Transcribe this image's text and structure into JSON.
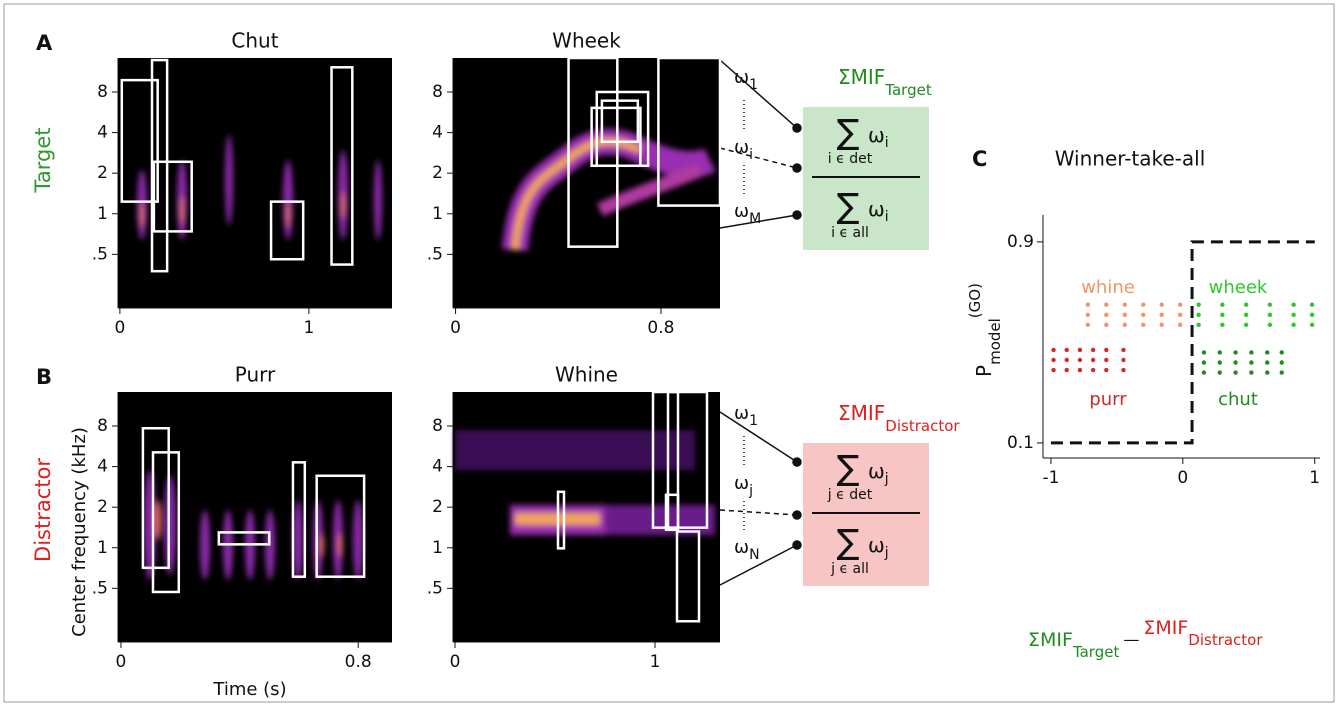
{
  "panel_labels": [
    "A",
    "B",
    "C"
  ],
  "row_labels": [
    "Target",
    "Distractor"
  ],
  "axis_labels": {
    "y": "Center frequency (kHz)",
    "x": "Time (s)"
  },
  "formulas": [
    {
      "sum_label": "ΣMIF",
      "sum_subscript": "Target",
      "weights": [
        {
          "symbol": "ω",
          "index": "1"
        },
        {
          "symbol": "ω",
          "index": "i"
        },
        {
          "symbol": "ω",
          "index": "M"
        }
      ],
      "numerator": {
        "sigma": "∑",
        "term": "ω",
        "term_index": "i",
        "range": "i ϵ det"
      },
      "denominator": {
        "sigma": "∑",
        "term": "ω",
        "term_index": "i",
        "range": "i ϵ all"
      }
    },
    {
      "sum_label": "ΣMIF",
      "sum_subscript": "Distractor",
      "weights": [
        {
          "symbol": "ω",
          "index": "1"
        },
        {
          "symbol": "ω",
          "index": "j"
        },
        {
          "symbol": "ω",
          "index": "N"
        }
      ],
      "numerator": {
        "sigma": "∑",
        "term": "ω",
        "term_index": "j",
        "range": "j ϵ det"
      },
      "denominator": {
        "sigma": "∑",
        "term": "ω",
        "term_index": "j",
        "range": "j ϵ all"
      }
    }
  ],
  "chart_data": [
    {
      "type": "spectrogram",
      "title": "Chut",
      "log_y": true,
      "xlim": [
        -0.01,
        1.44
      ],
      "ylim": [
        0.2,
        14.3
      ],
      "xticks": [
        0,
        1
      ],
      "yticks": [
        8,
        4,
        2,
        1,
        {
          "value": 0.5,
          "label": ".5"
        }
      ],
      "boxes": [
        [
          0.01,
          0.2,
          1.23,
          9.8
        ],
        [
          0.17,
          0.25,
          0.375,
          13.8
        ],
        [
          0.18,
          0.38,
          0.74,
          2.43
        ],
        [
          0.8,
          0.97,
          0.46,
          1.23
        ],
        [
          1.12,
          1.23,
          0.42,
          12.2
        ]
      ]
    },
    {
      "type": "spectrogram",
      "title": "Wheek",
      "log_y": true,
      "xlim": [
        -0.01,
        1.03
      ],
      "ylim": [
        0.2,
        14.3
      ],
      "xticks": [
        0,
        0.8
      ],
      "yticks": [
        8,
        4,
        2,
        1,
        {
          "value": 0.5,
          "label": ".5"
        }
      ],
      "boxes": [
        [
          0.44,
          0.63,
          0.57,
          14.3
        ],
        [
          0.55,
          0.75,
          2.27,
          8
        ],
        [
          0.53,
          0.72,
          2.27,
          6.1
        ],
        [
          0.57,
          0.71,
          3.42,
          6.9
        ],
        [
          0.79,
          1.03,
          1.15,
          14.3
        ]
      ]
    },
    {
      "type": "spectrogram",
      "title": "Purr",
      "log_y": true,
      "xlim": [
        -0.01,
        0.914
      ],
      "ylim": [
        0.2,
        14.3
      ],
      "xticks": [
        0,
        0.8
      ],
      "yticks": [
        8,
        4,
        2,
        1,
        {
          "value": 0.5,
          "label": ".5"
        }
      ],
      "boxes": [
        [
          0.074,
          0.161,
          0.71,
          7.7
        ],
        [
          0.108,
          0.195,
          0.47,
          5.1
        ],
        [
          0.33,
          0.5,
          1.06,
          1.3
        ],
        [
          0.58,
          0.62,
          0.61,
          4.3
        ],
        [
          0.66,
          0.82,
          0.61,
          3.42
        ]
      ]
    },
    {
      "type": "spectrogram",
      "title": "Whine",
      "log_y": true,
      "xlim": [
        -0.01,
        1.325
      ],
      "ylim": [
        0.2,
        14.3
      ],
      "xticks": [
        0,
        1
      ],
      "yticks": [
        8,
        4,
        2,
        1,
        {
          "value": 0.5,
          "label": ".5"
        }
      ],
      "boxes": [
        [
          0.515,
          0.545,
          0.99,
          2.6
        ],
        [
          0.99,
          1.26,
          1.41,
          14.3
        ],
        [
          1.065,
          1.115,
          1.41,
          14.3
        ],
        [
          1.055,
          1.115,
          1.36,
          2.47
        ],
        [
          1.11,
          1.22,
          0.285,
          1.32
        ]
      ]
    },
    {
      "type": "scatter",
      "title": "Winner-take-all",
      "ylabel": {
        "text": "P",
        "sub": "model",
        "sup": "(GO)"
      },
      "xlabel": [
        {
          "text": "ΣMIF",
          "sub": "Target",
          "color": "#1e8c1e"
        },
        {
          "text": "—"
        },
        {
          "text": "ΣMIF",
          "sub": "Distractor",
          "color": "#e0201c"
        }
      ],
      "xlim": [
        -1.06,
        1.04
      ],
      "ylim": [
        0.04,
        1.007
      ],
      "xticks": [
        -1,
        0,
        1
      ],
      "yticks": [
        0.1,
        0.9
      ],
      "threshold": {
        "x": [
          -1,
          0.07,
          0.07,
          1
        ],
        "y": [
          0.1,
          0.1,
          0.9,
          0.9
        ]
      },
      "series": [
        {
          "name": "whine",
          "color": "#f0956a",
          "x": [
            -0.72,
            -0.58,
            -0.44,
            -0.3,
            -0.16,
            -0.02,
            -0.72,
            -0.58,
            -0.44,
            -0.3,
            -0.16,
            -0.02,
            -0.72,
            -0.58,
            -0.44,
            -0.3,
            -0.16,
            -0.02
          ],
          "y": [
            0.65,
            0.65,
            0.65,
            0.65,
            0.65,
            0.65,
            0.61,
            0.61,
            0.61,
            0.61,
            0.61,
            0.61,
            0.57,
            0.57,
            0.57,
            0.57,
            0.57,
            0.57
          ]
        },
        {
          "name": "wheek",
          "color": "#2ec82e",
          "x": [
            0.12,
            0.3,
            0.48,
            0.66,
            0.84,
            0.98,
            0.12,
            0.3,
            0.48,
            0.66,
            0.84,
            0.98,
            0.12,
            0.3,
            0.48,
            0.66,
            0.84,
            0.98
          ],
          "y": [
            0.65,
            0.65,
            0.65,
            0.65,
            0.65,
            0.65,
            0.61,
            0.61,
            0.61,
            0.61,
            0.61,
            0.61,
            0.57,
            0.57,
            0.57,
            0.57,
            0.57,
            0.57
          ]
        },
        {
          "name": "purr",
          "color": "#d62728",
          "x": [
            -0.98,
            -0.88,
            -0.78,
            -0.68,
            -0.58,
            -0.45,
            -0.98,
            -0.88,
            -0.78,
            -0.68,
            -0.58,
            -0.45,
            -0.98,
            -0.88,
            -0.78,
            -0.68,
            -0.58,
            -0.45
          ],
          "y": [
            0.47,
            0.47,
            0.47,
            0.47,
            0.47,
            0.47,
            0.43,
            0.43,
            0.43,
            0.43,
            0.43,
            0.43,
            0.39,
            0.39,
            0.39,
            0.39,
            0.39,
            0.39
          ]
        },
        {
          "name": "chut",
          "color": "#1e8c1e",
          "x": [
            0.16,
            0.28,
            0.4,
            0.52,
            0.64,
            0.75,
            0.16,
            0.28,
            0.4,
            0.52,
            0.64,
            0.75,
            0.16,
            0.28,
            0.4,
            0.52,
            0.64,
            0.75
          ],
          "y": [
            0.46,
            0.46,
            0.46,
            0.46,
            0.46,
            0.46,
            0.42,
            0.42,
            0.42,
            0.42,
            0.42,
            0.42,
            0.38,
            0.38,
            0.38,
            0.38,
            0.38,
            0.38
          ]
        }
      ]
    }
  ]
}
